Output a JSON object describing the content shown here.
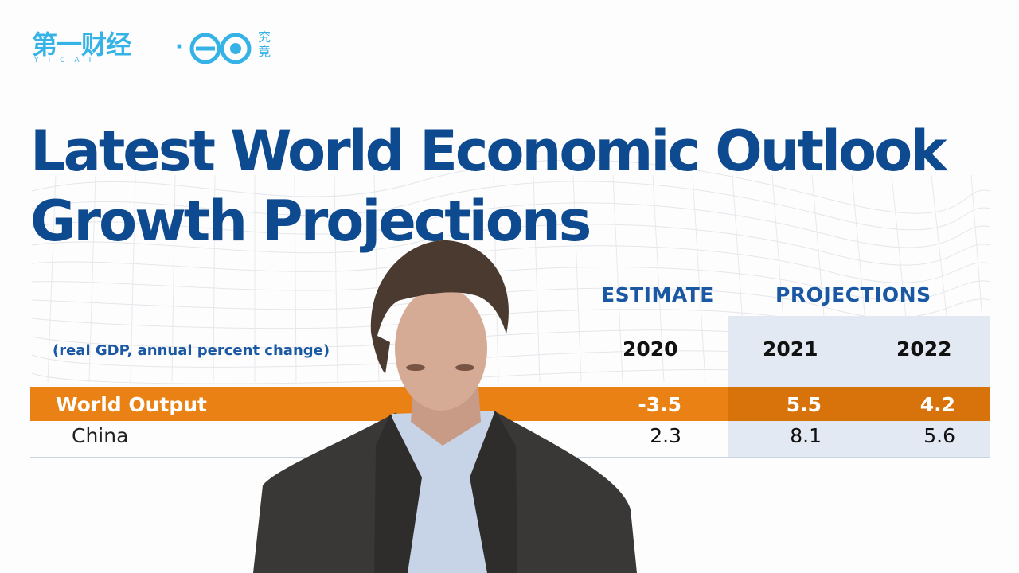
{
  "watermark": {
    "brand_main": "第一财经",
    "brand_sub": "YICAI",
    "separator": "·",
    "partner_text": "究竟"
  },
  "slide": {
    "title_line1": "Latest World Economic Outlook",
    "title_line2": "Growth Projections",
    "header_estimate": "ESTIMATE",
    "header_projections": "PROJECTIONS",
    "units_note": "(real GDP, annual percent change)",
    "years": [
      "2020",
      "2021",
      "2022"
    ],
    "rows": [
      {
        "label": "World Output",
        "values": [
          "-3.5",
          "5.5",
          "4.2"
        ]
      },
      {
        "label": "China",
        "values": [
          "2.3",
          "8.1",
          "5.6"
        ]
      }
    ],
    "colors": {
      "title": "#0e4a8f",
      "header": "#1b58a4",
      "highlight_row": "#e98114",
      "projection_panel": "#e3e9f3",
      "watermark": "#36b3e6"
    }
  }
}
